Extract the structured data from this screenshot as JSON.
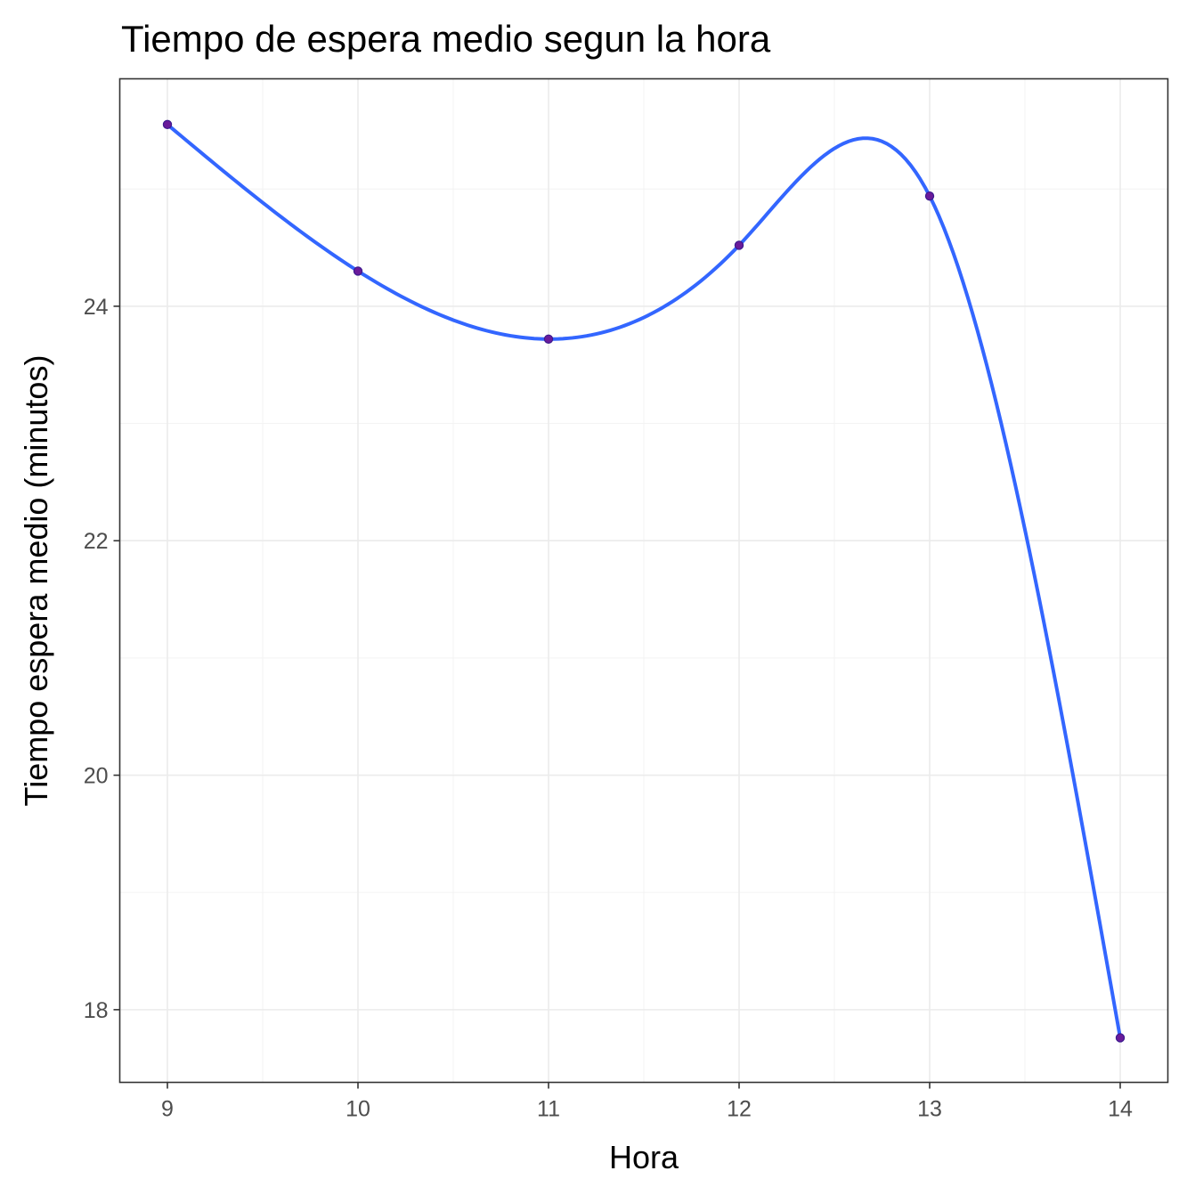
{
  "chart_data": {
    "type": "line",
    "title": "Tiempo de espera medio segun la hora",
    "xlabel": "Hora",
    "ylabel": "Tiempo espera medio (minutos)",
    "x": [
      9,
      10,
      11,
      12,
      13,
      14
    ],
    "series": [
      {
        "values": [
          25.55,
          24.3,
          23.72,
          24.52,
          24.94,
          17.76
        ],
        "smooth": true
      }
    ],
    "xticks": [
      "9",
      "10",
      "11",
      "12",
      "13",
      "14"
    ],
    "yticks": [
      "18",
      "20",
      "22",
      "24"
    ],
    "xlim": [
      8.75,
      14.25
    ],
    "ylim": [
      17.38,
      25.94
    ],
    "grid": true,
    "legend": "none",
    "colors": {
      "line": "#3366ff",
      "point_fill": "#6a1b9a",
      "point_stroke": "#3d1a8f",
      "border": "#333333",
      "grid": "#ebebeb"
    }
  }
}
